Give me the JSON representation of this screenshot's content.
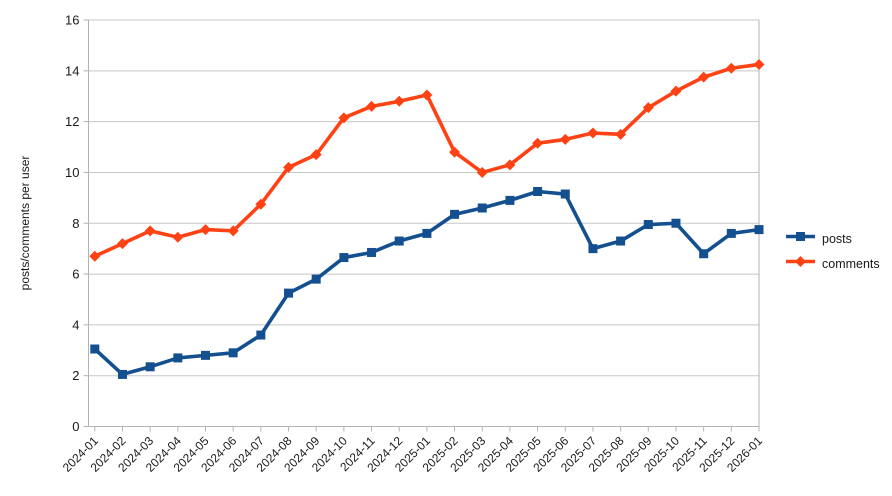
{
  "page": {
    "background": "#ffffff"
  },
  "chart_data": {
    "type": "line",
    "title": "",
    "xlabel": "",
    "ylabel": "posts/comments per user",
    "ylim": [
      0,
      16
    ],
    "ytick_step": 2,
    "grid": true,
    "legend_position": "right",
    "categories": [
      "2024-01",
      "2024-02",
      "2024-03",
      "2024-04",
      "2024-05",
      "2024-06",
      "2024-07",
      "2024-08",
      "2024-09",
      "2024-10",
      "2024-11",
      "2024-12",
      "2025-01",
      "2025-02",
      "2025-03",
      "2025-04",
      "2025-05",
      "2025-06",
      "2025-07",
      "2025-08",
      "2025-09",
      "2025-10",
      "2025-11",
      "2025-12",
      "2026-01"
    ],
    "series": [
      {
        "name": "posts",
        "color": "#14508f",
        "marker": "square",
        "values": [
          3.05,
          2.05,
          2.35,
          2.7,
          2.8,
          2.9,
          3.6,
          5.25,
          5.8,
          6.65,
          6.85,
          7.3,
          7.6,
          8.35,
          8.6,
          8.9,
          9.25,
          9.15,
          7.0,
          7.3,
          7.95,
          8.0,
          6.8,
          7.6,
          7.75
        ]
      },
      {
        "name": "comments",
        "color": "#ff4214",
        "marker": "diamond",
        "values": [
          6.7,
          7.2,
          7.7,
          7.45,
          7.75,
          7.7,
          8.75,
          10.2,
          10.7,
          12.15,
          12.6,
          12.8,
          13.05,
          10.8,
          10.0,
          10.3,
          11.15,
          11.3,
          11.55,
          11.5,
          12.55,
          13.2,
          13.75,
          14.1,
          14.25
        ]
      }
    ],
    "style": {
      "grid_color": "#c7c7c7",
      "axis_color": "#b3b3b3",
      "text_color": "#1a1a1a",
      "background": "#ffffff"
    }
  }
}
